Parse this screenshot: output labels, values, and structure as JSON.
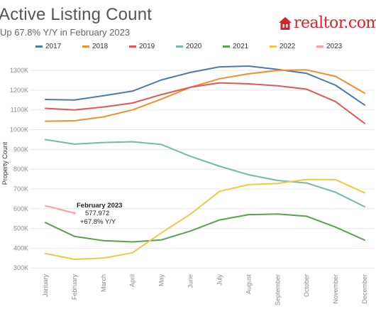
{
  "title": "Active Listing Count",
  "subtitle": "Up 67.8% Y/Y in February 2023",
  "logo_text": "realtor.com",
  "colors": {
    "2017": "#4e79a7",
    "2018": "#f28e2b",
    "2019": "#e15759",
    "2020": "#76b7b2",
    "2021": "#59a14f",
    "2022": "#edc948",
    "2023": "#ff9da7",
    "brand": "#d92228",
    "axis_text": "#8a8a8a",
    "grid": "#e8e8e8"
  },
  "annotation": {
    "title": "February 2023",
    "value": "577,972",
    "change": "+67.8% Y/Y"
  },
  "chart_data": {
    "type": "line",
    "title": "Active Listing Count",
    "subtitle": "Up 67.8% Y/Y in February 2023",
    "ylabel": "Property Count",
    "xlabel": "",
    "x": [
      "January",
      "February",
      "March",
      "April",
      "May",
      "June",
      "July",
      "August",
      "September",
      "October",
      "November",
      "December"
    ],
    "ylim": [
      290000,
      1340000
    ],
    "yticks": [
      300000,
      400000,
      500000,
      600000,
      700000,
      800000,
      900000,
      1000000,
      1100000,
      1200000,
      1300000
    ],
    "ytick_labels": [
      "300K",
      "400K",
      "500K",
      "600K",
      "700K",
      "800K",
      "900K",
      "1000K",
      "1100K",
      "1200K",
      "1300K"
    ],
    "grid": true,
    "legend_position": "top",
    "series": [
      {
        "name": "2017",
        "values": [
          1153000,
          1150000,
          1172000,
          1195000,
          1252000,
          1290000,
          1318000,
          1322000,
          1305000,
          1285000,
          1225000,
          1125000
        ]
      },
      {
        "name": "2018",
        "values": [
          1043000,
          1045000,
          1065000,
          1100000,
          1155000,
          1215000,
          1258000,
          1283000,
          1300000,
          1303000,
          1270000,
          1185000
        ]
      },
      {
        "name": "2019",
        "values": [
          1108000,
          1100000,
          1115000,
          1135000,
          1178000,
          1215000,
          1237000,
          1232000,
          1222000,
          1205000,
          1142000,
          1032000
        ]
      },
      {
        "name": "2020",
        "values": [
          950000,
          927000,
          935000,
          939000,
          925000,
          865000,
          815000,
          772000,
          743000,
          730000,
          683000,
          610000
        ]
      },
      {
        "name": "2021",
        "values": [
          530000,
          460000,
          438000,
          432000,
          442000,
          487000,
          543000,
          570000,
          573000,
          562000,
          507000,
          441000
        ]
      },
      {
        "name": "2022",
        "values": [
          373000,
          344000,
          350000,
          377000,
          478000,
          573000,
          688000,
          722000,
          728000,
          748000,
          747000,
          680000
        ]
      },
      {
        "name": "2023",
        "values": [
          615000,
          578000,
          null,
          null,
          null,
          null,
          null,
          null,
          null,
          null,
          null,
          null
        ]
      }
    ]
  }
}
